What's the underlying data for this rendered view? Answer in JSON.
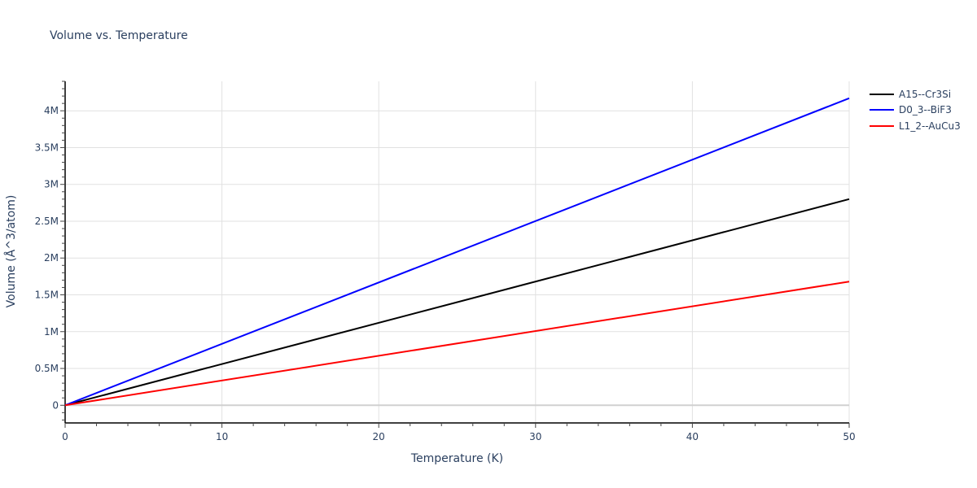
{
  "chart_data": {
    "type": "line",
    "title": "Volume vs. Temperature",
    "xlabel": "Temperature (K)",
    "ylabel": "Volume (Å^3/atom)",
    "xlim": [
      0,
      50
    ],
    "ylim": [
      -240000,
      4400000
    ],
    "grid": true,
    "legend_position": "right",
    "x_ticks": [
      0,
      10,
      20,
      30,
      40,
      50
    ],
    "x_tick_labels": [
      "0",
      "10",
      "20",
      "30",
      "40",
      "50"
    ],
    "y_ticks": [
      0,
      500000,
      1000000,
      1500000,
      2000000,
      2500000,
      3000000,
      3500000,
      4000000
    ],
    "y_tick_labels": [
      "0",
      "0.5M",
      "1M",
      "1.5M",
      "2M",
      "2.5M",
      "3M",
      "3.5M",
      "4M"
    ],
    "x": [
      0,
      50
    ],
    "series": [
      {
        "name": "A15--Cr3Si",
        "color": "#000000",
        "values": [
          0,
          2800000
        ]
      },
      {
        "name": "D0_3--BiF3",
        "color": "#0000ff",
        "values": [
          0,
          4170000
        ]
      },
      {
        "name": "L1_2--AuCu3",
        "color": "#ff0000",
        "values": [
          0,
          1680000
        ]
      }
    ]
  },
  "legend": {
    "items": [
      {
        "label": "A15--Cr3Si",
        "color": "#000000"
      },
      {
        "label": "D0_3--BiF3",
        "color": "#0000ff"
      },
      {
        "label": "L1_2--AuCu3",
        "color": "#ff0000"
      }
    ]
  }
}
